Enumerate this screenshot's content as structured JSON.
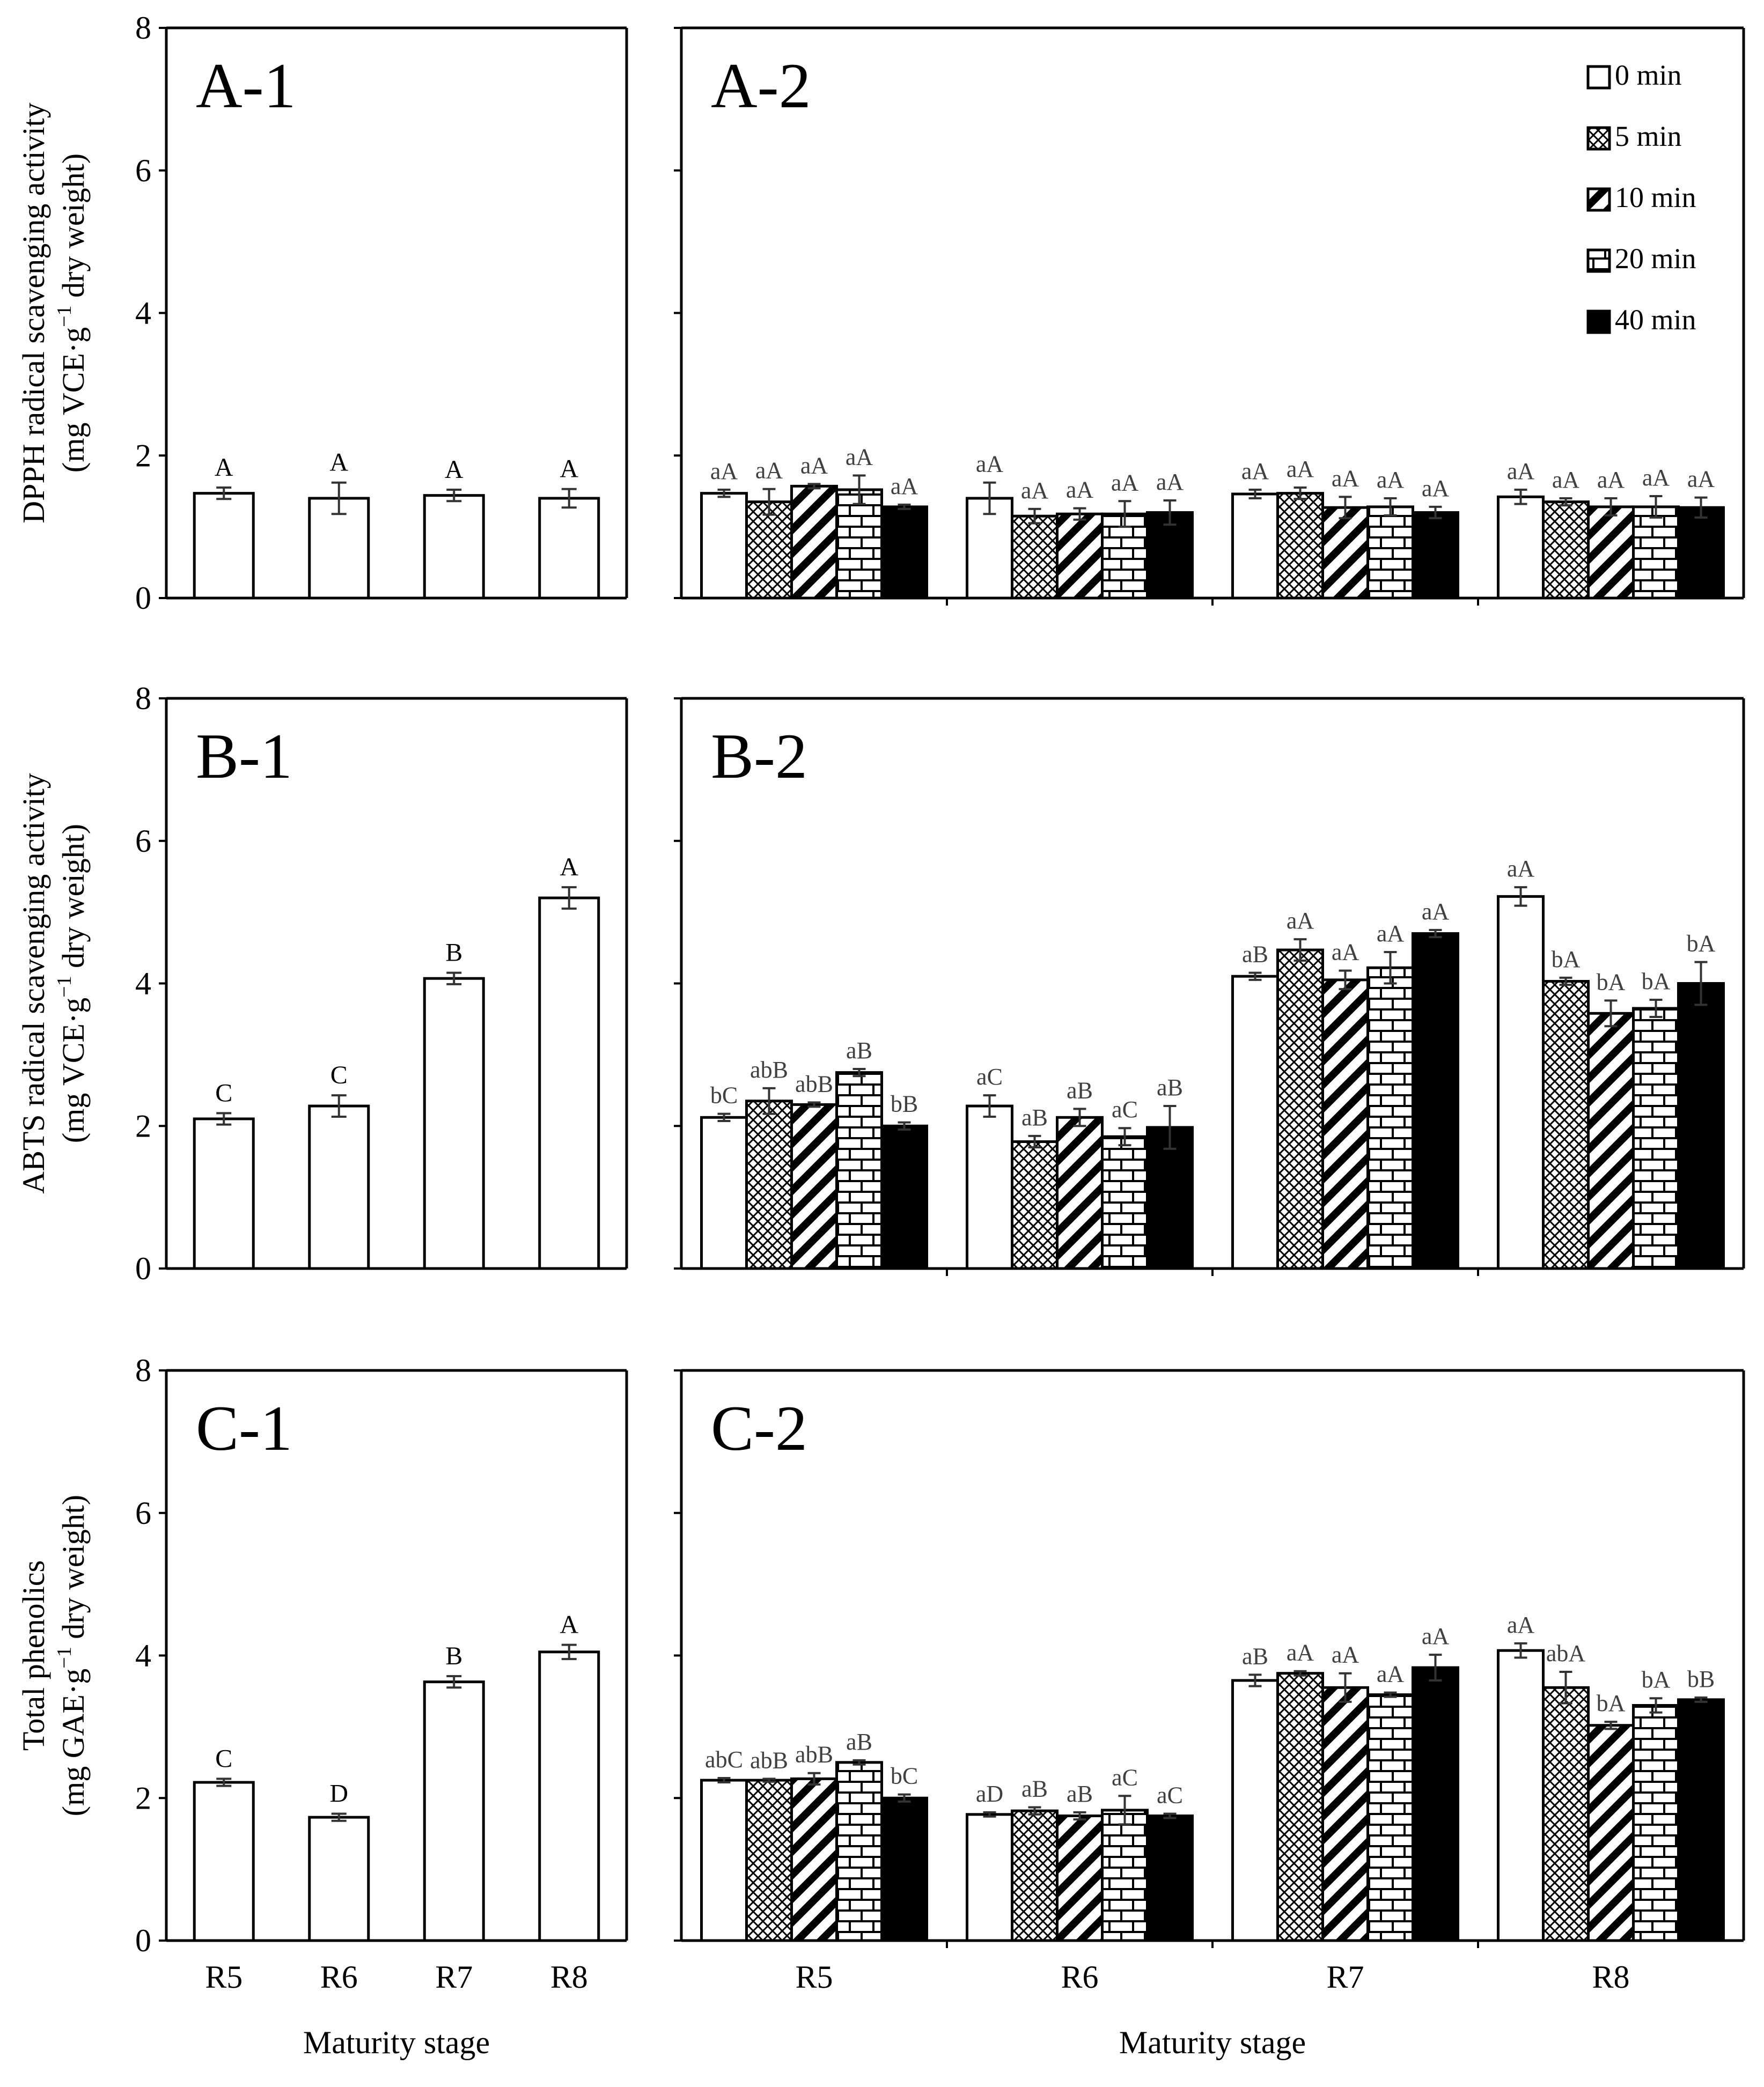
{
  "colors": {
    "axis": "#000000",
    "letter": "#404040",
    "fill_white": "#ffffff",
    "fill_black": "#000000"
  },
  "legend": [
    "0 min",
    "5 min",
    "10 min",
    "20 min",
    "40 min"
  ],
  "chart_data": [
    {
      "id": "A-1",
      "type": "bar",
      "panel_label": "A-1",
      "ylabel_line1": "DPPH radical scavenging activity",
      "ylabel_line2_pre": "(mg VCE·g",
      "ylabel_sup": "−1",
      "ylabel_line2_post": " dry weight)",
      "yticks": [
        "0",
        "2",
        "4",
        "6",
        "8"
      ],
      "ylim": [
        0,
        8
      ],
      "categories": [
        "R5",
        "R6",
        "R7",
        "R8"
      ],
      "values": [
        1.47,
        1.4,
        1.44,
        1.4
      ],
      "errors": [
        0.08,
        0.22,
        0.08,
        0.13
      ],
      "letters": [
        "A",
        "A",
        "A",
        "A"
      ],
      "xlabel": ""
    },
    {
      "id": "A-2",
      "type": "bar",
      "panel_label": "A-2",
      "yticks": [
        "0",
        "2",
        "4",
        "6",
        "8"
      ],
      "ylim": [
        0,
        8
      ],
      "categories": [
        "R5",
        "R6",
        "R7",
        "R8"
      ],
      "series": [
        {
          "name": "0 min",
          "values": [
            1.47,
            1.4,
            1.46,
            1.42
          ],
          "errors": [
            0.05,
            0.22,
            0.06,
            0.1
          ],
          "letters": [
            "aA",
            "aA",
            "aA",
            "aA"
          ]
        },
        {
          "name": "5 min",
          "values": [
            1.35,
            1.15,
            1.47,
            1.35
          ],
          "errors": [
            0.18,
            0.1,
            0.08,
            0.05
          ],
          "letters": [
            "aA",
            "aA",
            "aA",
            "aA"
          ]
        },
        {
          "name": "10 min",
          "values": [
            1.57,
            1.18,
            1.27,
            1.28
          ],
          "errors": [
            0.03,
            0.08,
            0.15,
            0.12
          ],
          "letters": [
            "aA",
            "aA",
            "aA",
            "aA"
          ]
        },
        {
          "name": "20 min",
          "values": [
            1.52,
            1.18,
            1.28,
            1.28
          ],
          "errors": [
            0.2,
            0.18,
            0.12,
            0.15
          ],
          "letters": [
            "aA",
            "aA",
            "aA",
            "aA"
          ]
        },
        {
          "name": "40 min",
          "values": [
            1.28,
            1.2,
            1.2,
            1.27
          ],
          "errors": [
            0.03,
            0.17,
            0.08,
            0.14
          ],
          "letters": [
            "aA",
            "aA",
            "aA",
            "aA"
          ]
        }
      ],
      "xlabel": ""
    },
    {
      "id": "B-1",
      "type": "bar",
      "panel_label": "B-1",
      "ylabel_line1": "ABTS radical scavenging activity",
      "ylabel_line2_pre": "(mg VCE·g",
      "ylabel_sup": "−1",
      "ylabel_line2_post": " dry weight)",
      "yticks": [
        "0",
        "2",
        "4",
        "6",
        "8"
      ],
      "ylim": [
        0,
        8
      ],
      "categories": [
        "R5",
        "R6",
        "R7",
        "R8"
      ],
      "values": [
        2.1,
        2.28,
        4.07,
        5.2
      ],
      "errors": [
        0.08,
        0.15,
        0.08,
        0.15
      ],
      "letters": [
        "C",
        "C",
        "B",
        "A"
      ],
      "xlabel": ""
    },
    {
      "id": "B-2",
      "type": "bar",
      "panel_label": "B-2",
      "yticks": [
        "0",
        "2",
        "4",
        "6",
        "8"
      ],
      "ylim": [
        0,
        8
      ],
      "categories": [
        "R5",
        "R6",
        "R7",
        "R8"
      ],
      "series": [
        {
          "name": "0 min",
          "values": [
            2.12,
            2.28,
            4.1,
            5.22
          ],
          "errors": [
            0.05,
            0.15,
            0.05,
            0.13
          ],
          "letters": [
            "bC",
            "aC",
            "aB",
            "aA"
          ]
        },
        {
          "name": "5 min",
          "values": [
            2.35,
            1.78,
            4.47,
            4.03
          ],
          "errors": [
            0.18,
            0.08,
            0.15,
            0.05
          ],
          "letters": [
            "abB",
            "aB",
            "aA",
            "bA"
          ]
        },
        {
          "name": "10 min",
          "values": [
            2.3,
            2.12,
            4.05,
            3.58
          ],
          "errors": [
            0.03,
            0.12,
            0.13,
            0.18
          ],
          "letters": [
            "abB",
            "aB",
            "aA",
            "bA"
          ]
        },
        {
          "name": "20 min",
          "values": [
            2.75,
            1.85,
            4.22,
            3.65
          ],
          "errors": [
            0.05,
            0.12,
            0.22,
            0.12
          ],
          "letters": [
            "aB",
            "aC",
            "aA",
            "bA"
          ]
        },
        {
          "name": "40 min",
          "values": [
            2.0,
            1.98,
            4.7,
            4.0
          ],
          "errors": [
            0.05,
            0.3,
            0.05,
            0.3
          ],
          "letters": [
            "bB",
            "aB",
            "aA",
            "bA"
          ]
        }
      ],
      "xlabel": ""
    },
    {
      "id": "C-1",
      "type": "bar",
      "panel_label": "C-1",
      "ylabel_line1": "Total phenolics",
      "ylabel_line2_pre": "(mg GAE·g",
      "ylabel_sup": "−1",
      "ylabel_line2_post": " dry weight)",
      "yticks": [
        "0",
        "2",
        "4",
        "6",
        "8"
      ],
      "ylim": [
        0,
        8
      ],
      "categories": [
        "R5",
        "R6",
        "R7",
        "R8"
      ],
      "values": [
        2.22,
        1.73,
        3.63,
        4.05
      ],
      "errors": [
        0.05,
        0.05,
        0.08,
        0.1
      ],
      "letters": [
        "C",
        "D",
        "B",
        "A"
      ],
      "xlabel": "Maturity stage"
    },
    {
      "id": "C-2",
      "type": "bar",
      "panel_label": "C-2",
      "yticks": [
        "0",
        "2",
        "4",
        "6",
        "8"
      ],
      "ylim": [
        0,
        8
      ],
      "categories": [
        "R5",
        "R6",
        "R7",
        "R8"
      ],
      "series": [
        {
          "name": "0 min",
          "values": [
            2.25,
            1.77,
            3.65,
            4.07
          ],
          "errors": [
            0.03,
            0.03,
            0.08,
            0.1
          ],
          "letters": [
            "abC",
            "aD",
            "aB",
            "aA"
          ]
        },
        {
          "name": "5 min",
          "values": [
            2.25,
            1.82,
            3.75,
            3.55
          ],
          "errors": [
            0.02,
            0.05,
            0.03,
            0.22
          ],
          "letters": [
            "abB",
            "aB",
            "aA",
            "abA"
          ]
        },
        {
          "name": "10 min",
          "values": [
            2.27,
            1.75,
            3.55,
            3.02
          ],
          "errors": [
            0.08,
            0.05,
            0.2,
            0.05
          ],
          "letters": [
            "abB",
            "aB",
            "aA",
            "bA"
          ]
        },
        {
          "name": "20 min",
          "values": [
            2.5,
            1.83,
            3.45,
            3.3
          ],
          "errors": [
            0.03,
            0.2,
            0.03,
            0.1
          ],
          "letters": [
            "aB",
            "aC",
            "aA",
            "bA"
          ]
        },
        {
          "name": "40 min",
          "values": [
            2.0,
            1.75,
            3.83,
            3.38
          ],
          "errors": [
            0.05,
            0.03,
            0.18,
            0.03
          ],
          "letters": [
            "bC",
            "aC",
            "aA",
            "bB"
          ]
        }
      ],
      "xlabel": "Maturity stage"
    }
  ]
}
